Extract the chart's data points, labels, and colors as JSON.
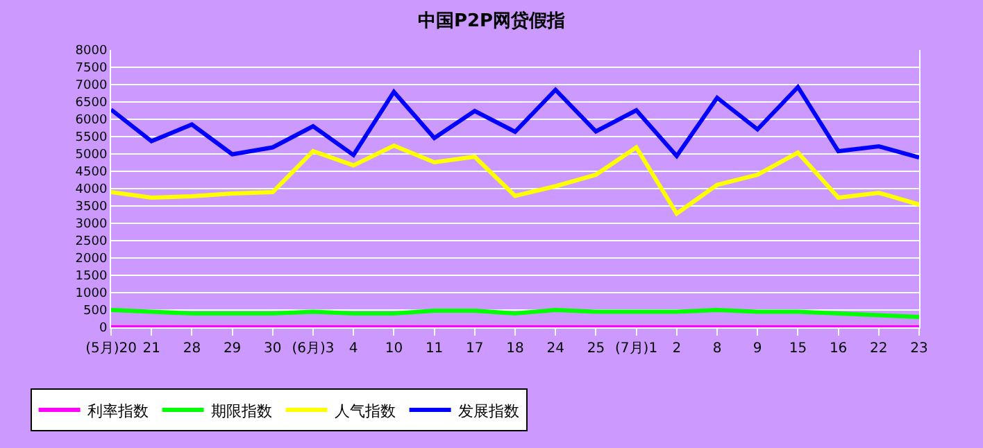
{
  "chart_data": {
    "type": "line",
    "title": "中国P2P网贷假指",
    "categories": [
      "(5月)20",
      "21",
      "28",
      "29",
      "30",
      "(6月)3",
      "4",
      "10",
      "11",
      "17",
      "18",
      "24",
      "25",
      "(7月)1",
      "2",
      "8",
      "9",
      "15",
      "16",
      "22",
      "23"
    ],
    "series": [
      {
        "name": "利率指数",
        "color": "#ff00ff",
        "values": [
          0,
          0,
          0,
          0,
          0,
          0,
          0,
          0,
          0,
          0,
          0,
          0,
          0,
          0,
          0,
          0,
          0,
          0,
          0,
          0,
          0
        ]
      },
      {
        "name": "期限指数",
        "color": "#00ff00",
        "values": [
          500,
          450,
          400,
          400,
          400,
          450,
          400,
          400,
          480,
          480,
          400,
          500,
          450,
          450,
          450,
          500,
          450,
          450,
          400,
          350,
          300
        ]
      },
      {
        "name": "人气指数",
        "color": "#ffff00",
        "values": [
          3900,
          3740,
          3780,
          3860,
          3900,
          5080,
          4670,
          5240,
          4760,
          4920,
          3790,
          4070,
          4400,
          5190,
          3280,
          4110,
          4400,
          5040,
          3740,
          3880,
          3540
        ]
      },
      {
        "name": "发展指数",
        "color": "#0000ff",
        "values": [
          6280,
          5370,
          5850,
          4990,
          5190,
          5800,
          4970,
          6790,
          5460,
          6240,
          5640,
          6850,
          5650,
          6260,
          4940,
          6620,
          5710,
          6930,
          5080,
          5220,
          4900
        ]
      }
    ],
    "ylim": [
      0,
      8000
    ],
    "yticks": [
      0,
      500,
      1000,
      1500,
      2000,
      2500,
      3000,
      3500,
      4000,
      4500,
      5000,
      5500,
      6000,
      6500,
      7000,
      7500,
      8000
    ],
    "grid": "y",
    "legend": "bottom left",
    "marker": "none",
    "line_style": "solid"
  }
}
